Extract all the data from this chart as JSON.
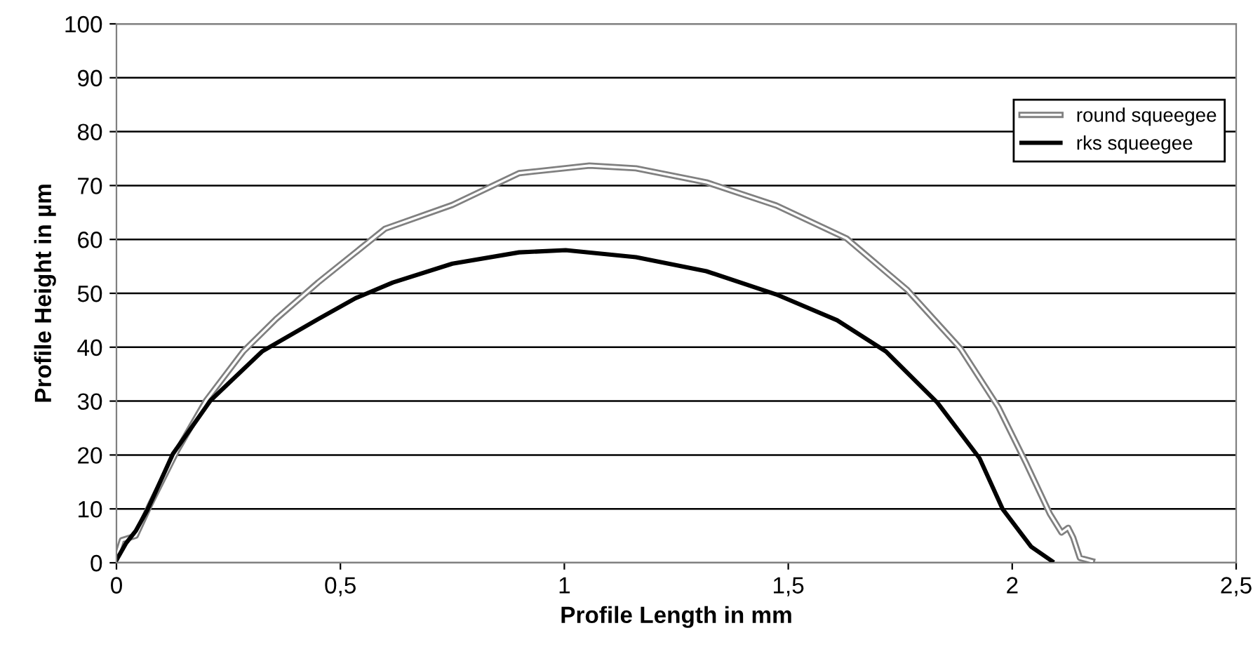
{
  "chart_data": {
    "type": "line",
    "xlabel": "Profile Length in mm",
    "ylabel": "Profile Height in µm",
    "xlim": [
      0,
      2.5
    ],
    "ylim": [
      0,
      100
    ],
    "xticks": [
      0,
      {
        "value": 0.5,
        "label": "0,5"
      },
      1,
      {
        "value": 1.5,
        "label": "1,5"
      },
      2,
      {
        "value": 2.5,
        "label": "2,5"
      }
    ],
    "yticks": [
      0,
      10,
      20,
      30,
      40,
      50,
      60,
      70,
      80,
      90,
      100
    ],
    "grid": "y",
    "legend": "top right",
    "marker": "none",
    "line_style": "solid",
    "series": [
      {
        "name": "round squeegee",
        "color": "#808080",
        "x": [
          0,
          0.012,
          0.043,
          0.074,
          0.136,
          0.2,
          0.283,
          0.356,
          0.45,
          0.6,
          0.75,
          0.899,
          1.056,
          1.16,
          1.317,
          1.473,
          1.63,
          1.766,
          1.885,
          1.969,
          2.031,
          2.084,
          2.11,
          2.125,
          2.136,
          2.151,
          2.178
        ],
        "values": [
          1,
          4.2,
          5,
          10.6,
          20.9,
          30.1,
          39.2,
          45.2,
          52,
          62,
          66.4,
          72.3,
          73.7,
          73.2,
          70.6,
          66.3,
          60.2,
          50.6,
          39.7,
          28.9,
          18.5,
          9.1,
          5.6,
          6.5,
          4.7,
          0.9,
          0.3
        ]
      },
      {
        "name": "rks squeegee",
        "color": "#000000",
        "x": [
          0,
          0.022,
          0.043,
          0.069,
          0.126,
          0.21,
          0.325,
          0.45,
          0.534,
          0.617,
          0.75,
          0.899,
          1.003,
          1.16,
          1.317,
          1.473,
          1.609,
          1.718,
          1.833,
          1.927,
          1.979,
          2.042,
          2.089
        ],
        "values": [
          0.5,
          3.7,
          5.9,
          9.8,
          20.2,
          30.1,
          39.2,
          45.2,
          49.1,
          52,
          55.5,
          57.6,
          58,
          56.7,
          54.1,
          49.8,
          45,
          39.2,
          29.7,
          19.4,
          9.9,
          3,
          0.3
        ]
      }
    ]
  }
}
